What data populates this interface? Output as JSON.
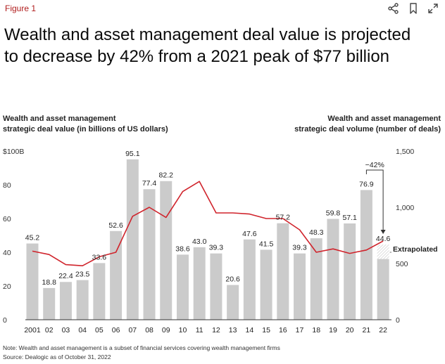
{
  "header": {
    "figure_label": "Figure 1",
    "title": "Wealth and asset management deal value is projected to decrease by 42% from a 2021 peak of $77 billion",
    "icons": [
      "share-icon",
      "bookmark-icon",
      "expand-icon"
    ]
  },
  "axes": {
    "left_title_line1": "Wealth and asset management",
    "left_title_line2": "strategic deal value (in billions of US dollars)",
    "right_title_line1": "Wealth and asset management",
    "right_title_line2": "strategic deal volume (number of deals)"
  },
  "footer": {
    "note": "Note: Wealth and asset management is a subset of financial services covering wealth management firms",
    "source": "Source: Dealogic as of October 31, 2022"
  },
  "chart_data": {
    "type": "bar",
    "categories": [
      "2001",
      "02",
      "03",
      "04",
      "05",
      "06",
      "07",
      "08",
      "09",
      "10",
      "11",
      "12",
      "13",
      "14",
      "15",
      "16",
      "17",
      "18",
      "19",
      "20",
      "21",
      "22"
    ],
    "series": [
      {
        "axis": "left",
        "mark": "bar",
        "values": [
          45.2,
          18.8,
          22.4,
          23.5,
          33.6,
          52.6,
          95.1,
          77.4,
          82.2,
          38.6,
          43.0,
          39.3,
          20.6,
          47.6,
          41.5,
          57.2,
          39.3,
          48.3,
          59.8,
          57.1,
          76.9,
          44.6
        ],
        "labels": [
          "45.2",
          "18.8",
          "22.4",
          "23.5",
          "33.6",
          "52.6",
          "95.1",
          "77.4",
          "82.2",
          "38.6",
          "43.0",
          "39.3",
          "20.6",
          "47.6",
          "41.5",
          "57.2",
          "39.3",
          "48.3",
          "59.8",
          "57.1",
          "76.9",
          "44.6"
        ]
      },
      {
        "axis": "right",
        "mark": "line",
        "values": [
          610,
          580,
          490,
          480,
          560,
          600,
          920,
          1000,
          910,
          1140,
          1230,
          950,
          950,
          940,
          900,
          900,
          800,
          600,
          630,
          590,
          620,
          700
        ]
      }
    ],
    "extrapolated": {
      "category": "22",
      "actual_value": 36.0,
      "label": "Extrapolated"
    },
    "left_axis": {
      "ticks": [
        0,
        20,
        40,
        60,
        80,
        100
      ],
      "tick_labels": [
        "0",
        "20",
        "40",
        "60",
        "80",
        "$100B"
      ],
      "ylim": [
        0,
        100
      ]
    },
    "right_axis": {
      "ticks": [
        0,
        500,
        1000,
        1500
      ],
      "tick_labels": [
        "0",
        "500",
        "1,000",
        "1,500"
      ],
      "ylim": [
        0,
        1500
      ]
    },
    "annotation": {
      "text": "−42%",
      "from": "21",
      "to": "22"
    },
    "colors": {
      "bar": "#cbcbcb",
      "line": "#d0242c",
      "axis": "#333333",
      "title_accent": "#b01c1c"
    }
  }
}
